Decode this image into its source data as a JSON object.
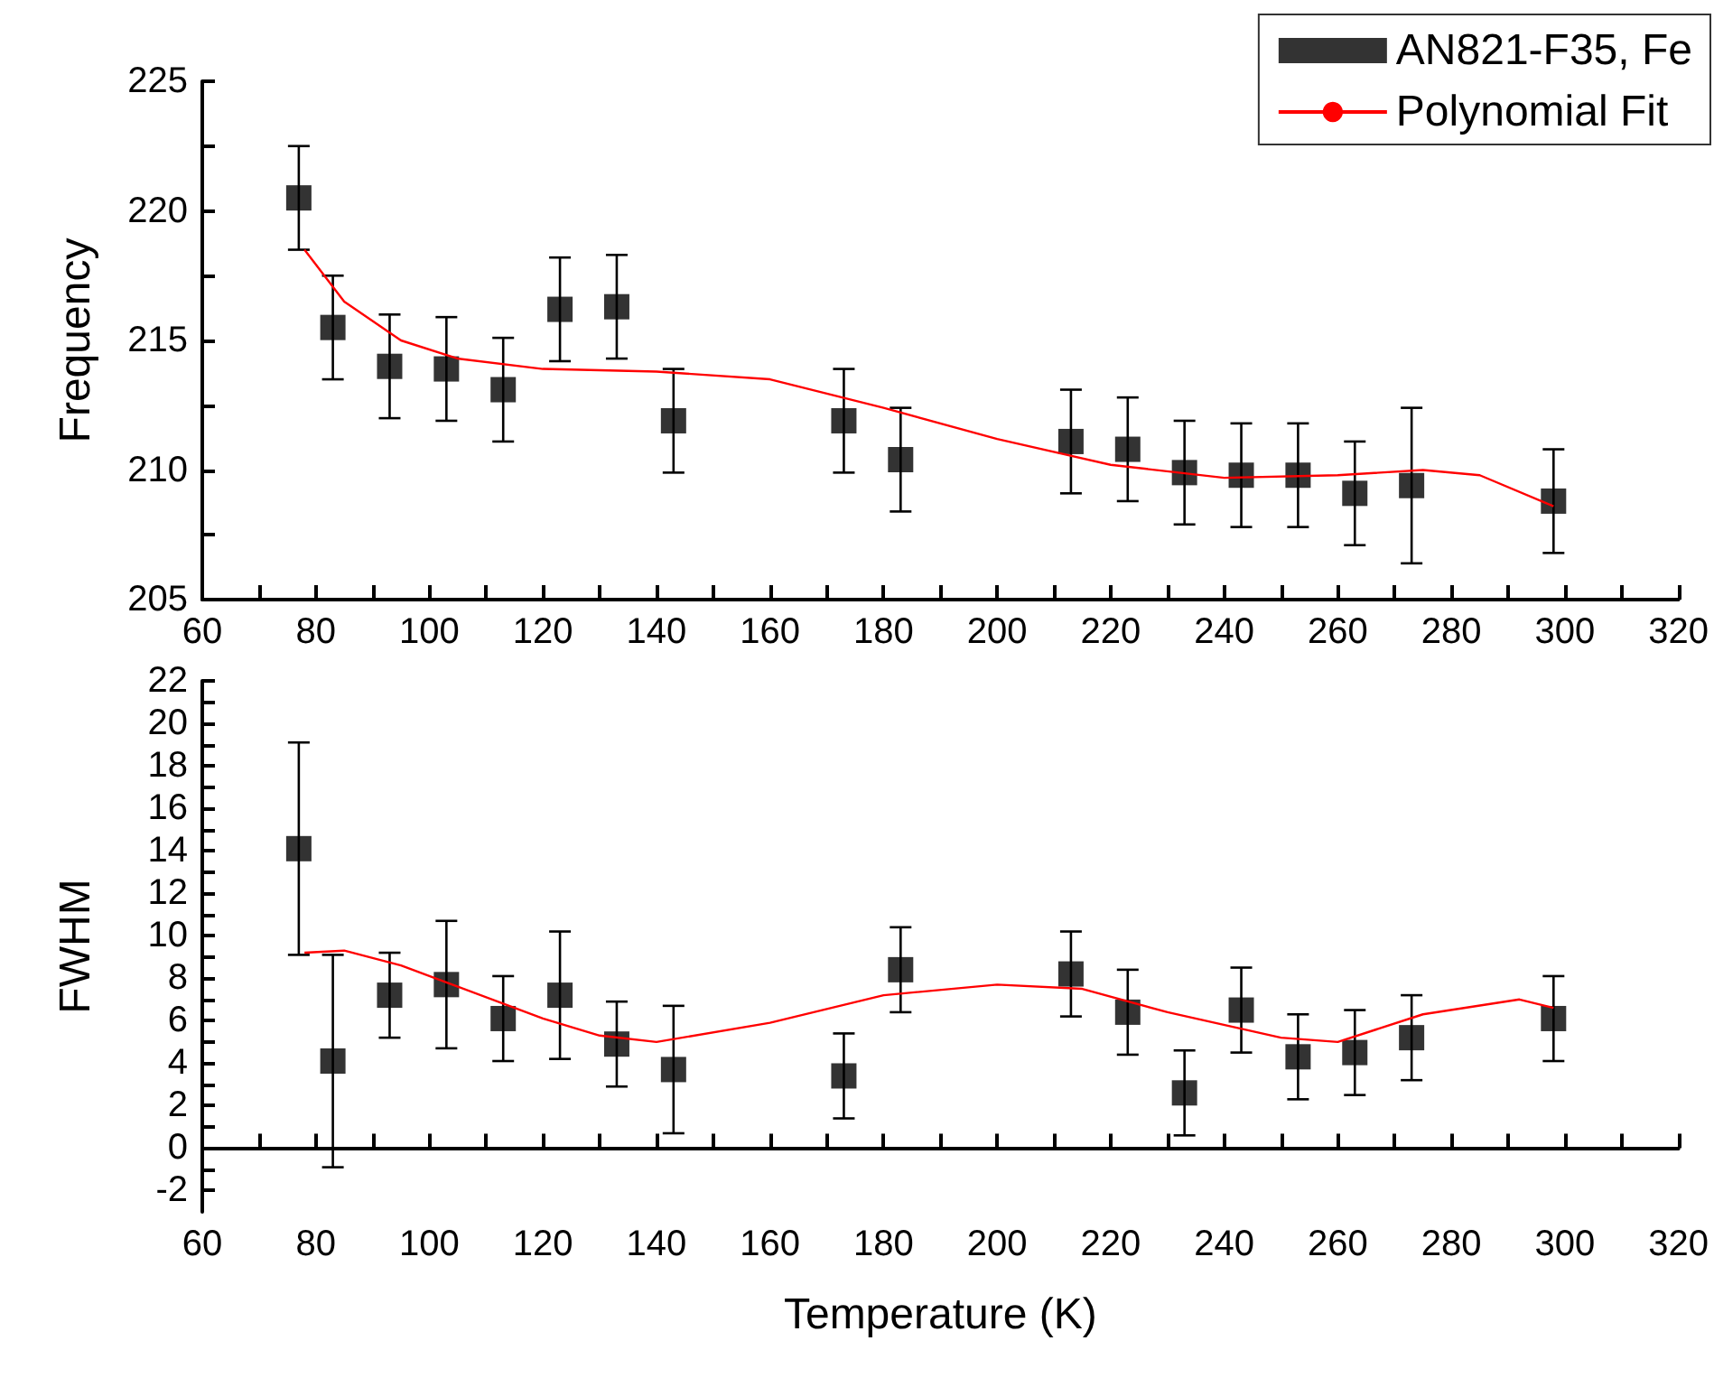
{
  "chart_data": [
    {
      "type": "scatter",
      "ylabel": "Frequency",
      "xlim": [
        60,
        320
      ],
      "xticks": [
        60,
        80,
        100,
        120,
        140,
        160,
        180,
        200,
        220,
        240,
        260,
        280,
        300,
        320
      ],
      "ylim": [
        205,
        225
      ],
      "yticks": [
        205,
        210,
        215,
        220,
        225
      ],
      "legend": "top right",
      "marker": "square",
      "series": [
        {
          "name": "AN821-F35, Fe",
          "color": "#000000",
          "x": [
            77,
            83,
            93,
            103,
            113,
            123,
            133,
            143,
            173,
            183,
            213,
            223,
            233,
            243,
            253,
            263,
            273,
            298
          ],
          "values": [
            220.5,
            215.5,
            214.0,
            213.9,
            213.1,
            216.2,
            216.3,
            211.9,
            211.9,
            210.4,
            211.1,
            210.8,
            209.9,
            209.8,
            209.8,
            209.1,
            209.4,
            208.8
          ],
          "errors": [
            2,
            2,
            2,
            2,
            2,
            2,
            2,
            2,
            2,
            2,
            2,
            2,
            2,
            2,
            2,
            2,
            3,
            2
          ]
        },
        {
          "name": "Polynomial Fit",
          "type": "line",
          "marker": "none",
          "color": "#ff0000",
          "x": [
            78,
            85,
            95,
            105,
            120,
            140,
            160,
            180,
            200,
            220,
            240,
            260,
            275,
            285,
            298
          ],
          "values": [
            218.5,
            216.5,
            215.0,
            214.3,
            213.9,
            213.8,
            213.5,
            212.4,
            211.2,
            210.2,
            209.7,
            209.8,
            210.0,
            209.8,
            208.6
          ]
        }
      ]
    },
    {
      "type": "scatter",
      "xlabel": "Temperature (K)",
      "ylabel": "FWHM",
      "xlim": [
        60,
        320
      ],
      "xticks": [
        60,
        80,
        100,
        120,
        140,
        160,
        180,
        200,
        220,
        240,
        260,
        280,
        300,
        320
      ],
      "ylim": [
        -3,
        22
      ],
      "yticks": [
        -2,
        0,
        2,
        4,
        6,
        8,
        10,
        12,
        14,
        16,
        18,
        20,
        22
      ],
      "marker": "square",
      "series": [
        {
          "color": "#000000",
          "x": [
            77,
            83,
            93,
            103,
            113,
            123,
            133,
            143,
            173,
            183,
            213,
            223,
            233,
            243,
            253,
            263,
            273,
            298
          ],
          "values": [
            14.1,
            4.1,
            7.2,
            7.7,
            6.1,
            7.2,
            4.9,
            3.7,
            3.4,
            8.4,
            8.2,
            6.4,
            2.6,
            6.5,
            4.3,
            4.5,
            5.2,
            6.1
          ],
          "errors": [
            5,
            5,
            2,
            3,
            2,
            3,
            2,
            3,
            2,
            2,
            2,
            2,
            2,
            2,
            2,
            2,
            2,
            2
          ]
        },
        {
          "type": "line",
          "marker": "none",
          "color": "#ff0000",
          "x": [
            78,
            85,
            95,
            105,
            120,
            130,
            140,
            160,
            180,
            200,
            215,
            230,
            250,
            260,
            275,
            292,
            298
          ],
          "values": [
            9.2,
            9.3,
            8.6,
            7.6,
            6.1,
            5.3,
            5.0,
            5.9,
            7.2,
            7.7,
            7.5,
            6.4,
            5.2,
            5.0,
            6.3,
            7.0,
            6.6
          ]
        }
      ]
    }
  ]
}
